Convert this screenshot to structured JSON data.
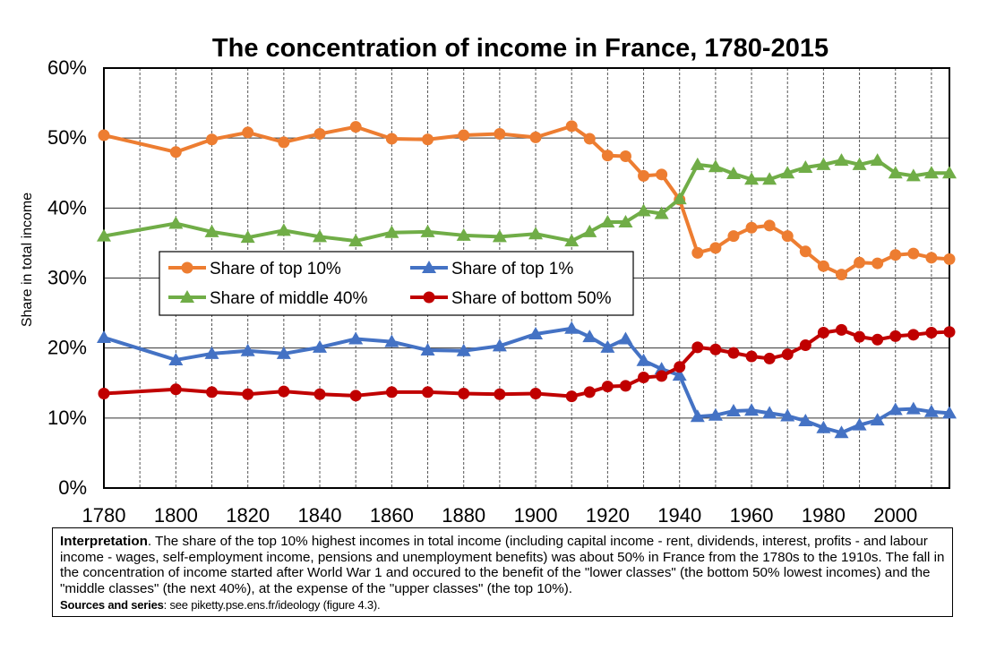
{
  "chart_data": {
    "type": "line",
    "title": "The concentration of income in France, 1780-2015",
    "ylabel": "Share in total income",
    "xlabel": "",
    "ylim": [
      0,
      60
    ],
    "xlim": [
      1780,
      2015
    ],
    "yticks": [
      "0%",
      "10%",
      "20%",
      "30%",
      "40%",
      "50%",
      "60%"
    ],
    "xticks": [
      "1780",
      "1800",
      "1820",
      "1840",
      "1860",
      "1880",
      "1900",
      "1920",
      "1940",
      "1960",
      "1980",
      "2000"
    ],
    "grid": "vertical dashed, horizontal solid",
    "legend_placement": "inside, middle-left",
    "series": [
      {
        "name": "Share of top 10%",
        "color": "#ED7D31",
        "marker": "circle",
        "points": [
          [
            1780,
            50.4
          ],
          [
            1800,
            48.0
          ],
          [
            1810,
            49.8
          ],
          [
            1820,
            50.8
          ],
          [
            1830,
            49.4
          ],
          [
            1840,
            50.6
          ],
          [
            1850,
            51.6
          ],
          [
            1860,
            49.9
          ],
          [
            1870,
            49.8
          ],
          [
            1880,
            50.4
          ],
          [
            1890,
            50.6
          ],
          [
            1900,
            50.1
          ],
          [
            1910,
            51.7
          ],
          [
            1915,
            49.9
          ],
          [
            1920,
            47.5
          ],
          [
            1925,
            47.4
          ],
          [
            1930,
            44.6
          ],
          [
            1935,
            44.8
          ],
          [
            1940,
            41.2
          ],
          [
            1945,
            33.6
          ],
          [
            1950,
            34.3
          ],
          [
            1955,
            36.0
          ],
          [
            1960,
            37.2
          ],
          [
            1965,
            37.5
          ],
          [
            1970,
            36.0
          ],
          [
            1975,
            33.8
          ],
          [
            1980,
            31.7
          ],
          [
            1985,
            30.5
          ],
          [
            1990,
            32.2
          ],
          [
            1995,
            32.1
          ],
          [
            2000,
            33.3
          ],
          [
            2005,
            33.5
          ],
          [
            2010,
            32.9
          ],
          [
            2015,
            32.7
          ]
        ]
      },
      {
        "name": "Share of middle 40%",
        "color": "#70AD47",
        "marker": "triangle",
        "points": [
          [
            1780,
            36.0
          ],
          [
            1800,
            37.8
          ],
          [
            1810,
            36.6
          ],
          [
            1820,
            35.8
          ],
          [
            1830,
            36.8
          ],
          [
            1840,
            35.9
          ],
          [
            1850,
            35.3
          ],
          [
            1860,
            36.5
          ],
          [
            1870,
            36.6
          ],
          [
            1880,
            36.1
          ],
          [
            1890,
            35.9
          ],
          [
            1900,
            36.3
          ],
          [
            1910,
            35.3
          ],
          [
            1915,
            36.6
          ],
          [
            1920,
            38.0
          ],
          [
            1925,
            38.0
          ],
          [
            1930,
            39.6
          ],
          [
            1935,
            39.2
          ],
          [
            1940,
            41.3
          ],
          [
            1945,
            46.2
          ],
          [
            1950,
            45.9
          ],
          [
            1955,
            44.9
          ],
          [
            1960,
            44.1
          ],
          [
            1965,
            44.1
          ],
          [
            1970,
            45.0
          ],
          [
            1975,
            45.8
          ],
          [
            1980,
            46.2
          ],
          [
            1985,
            46.8
          ],
          [
            1990,
            46.2
          ],
          [
            1995,
            46.8
          ],
          [
            2000,
            45.0
          ],
          [
            2005,
            44.6
          ],
          [
            2010,
            45.0
          ],
          [
            2015,
            45.0
          ]
        ]
      },
      {
        "name": "Share of top 1%",
        "color": "#4472C4",
        "marker": "triangle",
        "points": [
          [
            1780,
            21.5
          ],
          [
            1800,
            18.3
          ],
          [
            1810,
            19.2
          ],
          [
            1820,
            19.6
          ],
          [
            1830,
            19.2
          ],
          [
            1840,
            20.1
          ],
          [
            1850,
            21.3
          ],
          [
            1860,
            20.9
          ],
          [
            1870,
            19.7
          ],
          [
            1880,
            19.6
          ],
          [
            1890,
            20.3
          ],
          [
            1900,
            22.0
          ],
          [
            1910,
            22.8
          ],
          [
            1915,
            21.6
          ],
          [
            1920,
            20.1
          ],
          [
            1925,
            21.3
          ],
          [
            1930,
            18.2
          ],
          [
            1935,
            17.0
          ],
          [
            1940,
            16.1
          ],
          [
            1945,
            10.2
          ],
          [
            1950,
            10.4
          ],
          [
            1955,
            11.0
          ],
          [
            1960,
            11.1
          ],
          [
            1965,
            10.7
          ],
          [
            1970,
            10.3
          ],
          [
            1975,
            9.6
          ],
          [
            1980,
            8.6
          ],
          [
            1985,
            7.9
          ],
          [
            1990,
            9.0
          ],
          [
            1995,
            9.7
          ],
          [
            2000,
            11.2
          ],
          [
            2005,
            11.3
          ],
          [
            2010,
            10.9
          ],
          [
            2015,
            10.7
          ]
        ]
      },
      {
        "name": "Share of bottom 50%",
        "color": "#C00000",
        "marker": "circle",
        "points": [
          [
            1780,
            13.5
          ],
          [
            1800,
            14.1
          ],
          [
            1810,
            13.7
          ],
          [
            1820,
            13.4
          ],
          [
            1830,
            13.8
          ],
          [
            1840,
            13.4
          ],
          [
            1850,
            13.2
          ],
          [
            1860,
            13.7
          ],
          [
            1870,
            13.7
          ],
          [
            1880,
            13.5
          ],
          [
            1890,
            13.4
          ],
          [
            1900,
            13.5
          ],
          [
            1910,
            13.1
          ],
          [
            1915,
            13.7
          ],
          [
            1920,
            14.5
          ],
          [
            1925,
            14.6
          ],
          [
            1930,
            15.8
          ],
          [
            1935,
            16.0
          ],
          [
            1940,
            17.3
          ],
          [
            1945,
            20.1
          ],
          [
            1950,
            19.8
          ],
          [
            1955,
            19.3
          ],
          [
            1960,
            18.8
          ],
          [
            1965,
            18.5
          ],
          [
            1970,
            19.1
          ],
          [
            1975,
            20.4
          ],
          [
            1980,
            22.2
          ],
          [
            1985,
            22.6
          ],
          [
            1990,
            21.6
          ],
          [
            1995,
            21.2
          ],
          [
            2000,
            21.7
          ],
          [
            2005,
            21.9
          ],
          [
            2010,
            22.2
          ],
          [
            2015,
            22.3
          ]
        ]
      }
    ]
  },
  "interpretation": {
    "lead": "Interpretation",
    "text": ". The share of the top 10% highest incomes in total income (including capital income - rent, dividends, interest, profits - and labour income - wages, self-employment income, pensions and unemployment benefits) was about 50% in France from the 1780s to the 1910s. The fall in the concentration of income started after World War 1 and occured to the benefit of the \"lower classes\" (the bottom 50% lowest incomes) and the \"middle classes\" (the next 40%), at the expense of the \"upper classes\" (the top 10%).",
    "sources_label": "Sources and series",
    "sources_text": ": see piketty.pse.ens.fr/ideology (figure 4.3)."
  }
}
